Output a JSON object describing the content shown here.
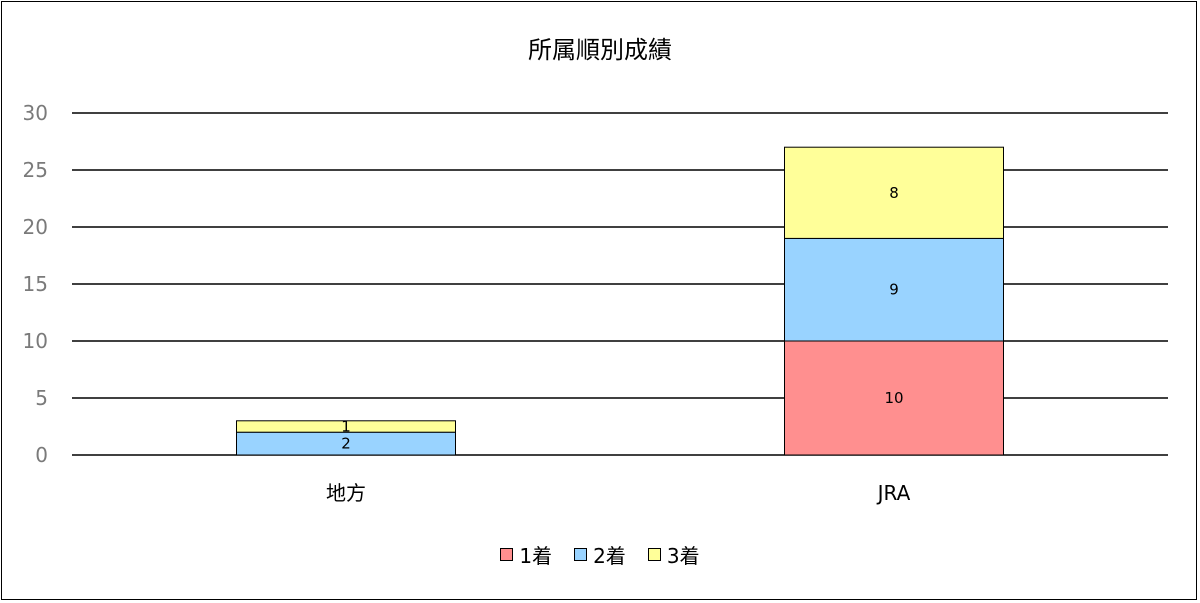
{
  "chart_data": {
    "type": "bar",
    "stacked": true,
    "title": "所属順別成績",
    "categories": [
      "地方",
      "JRA"
    ],
    "series": [
      {
        "name": "1着",
        "values": [
          0,
          10
        ],
        "color": "#FF8F8F"
      },
      {
        "name": "2着",
        "values": [
          2,
          9
        ],
        "color": "#99D3FF"
      },
      {
        "name": "3着",
        "values": [
          1,
          8
        ],
        "color": "#FFFF99"
      }
    ],
    "ylim": [
      0,
      30
    ],
    "yticks": [
      0,
      5,
      10,
      15,
      20,
      25,
      30
    ],
    "grid": true,
    "legend_position": "bottom"
  }
}
